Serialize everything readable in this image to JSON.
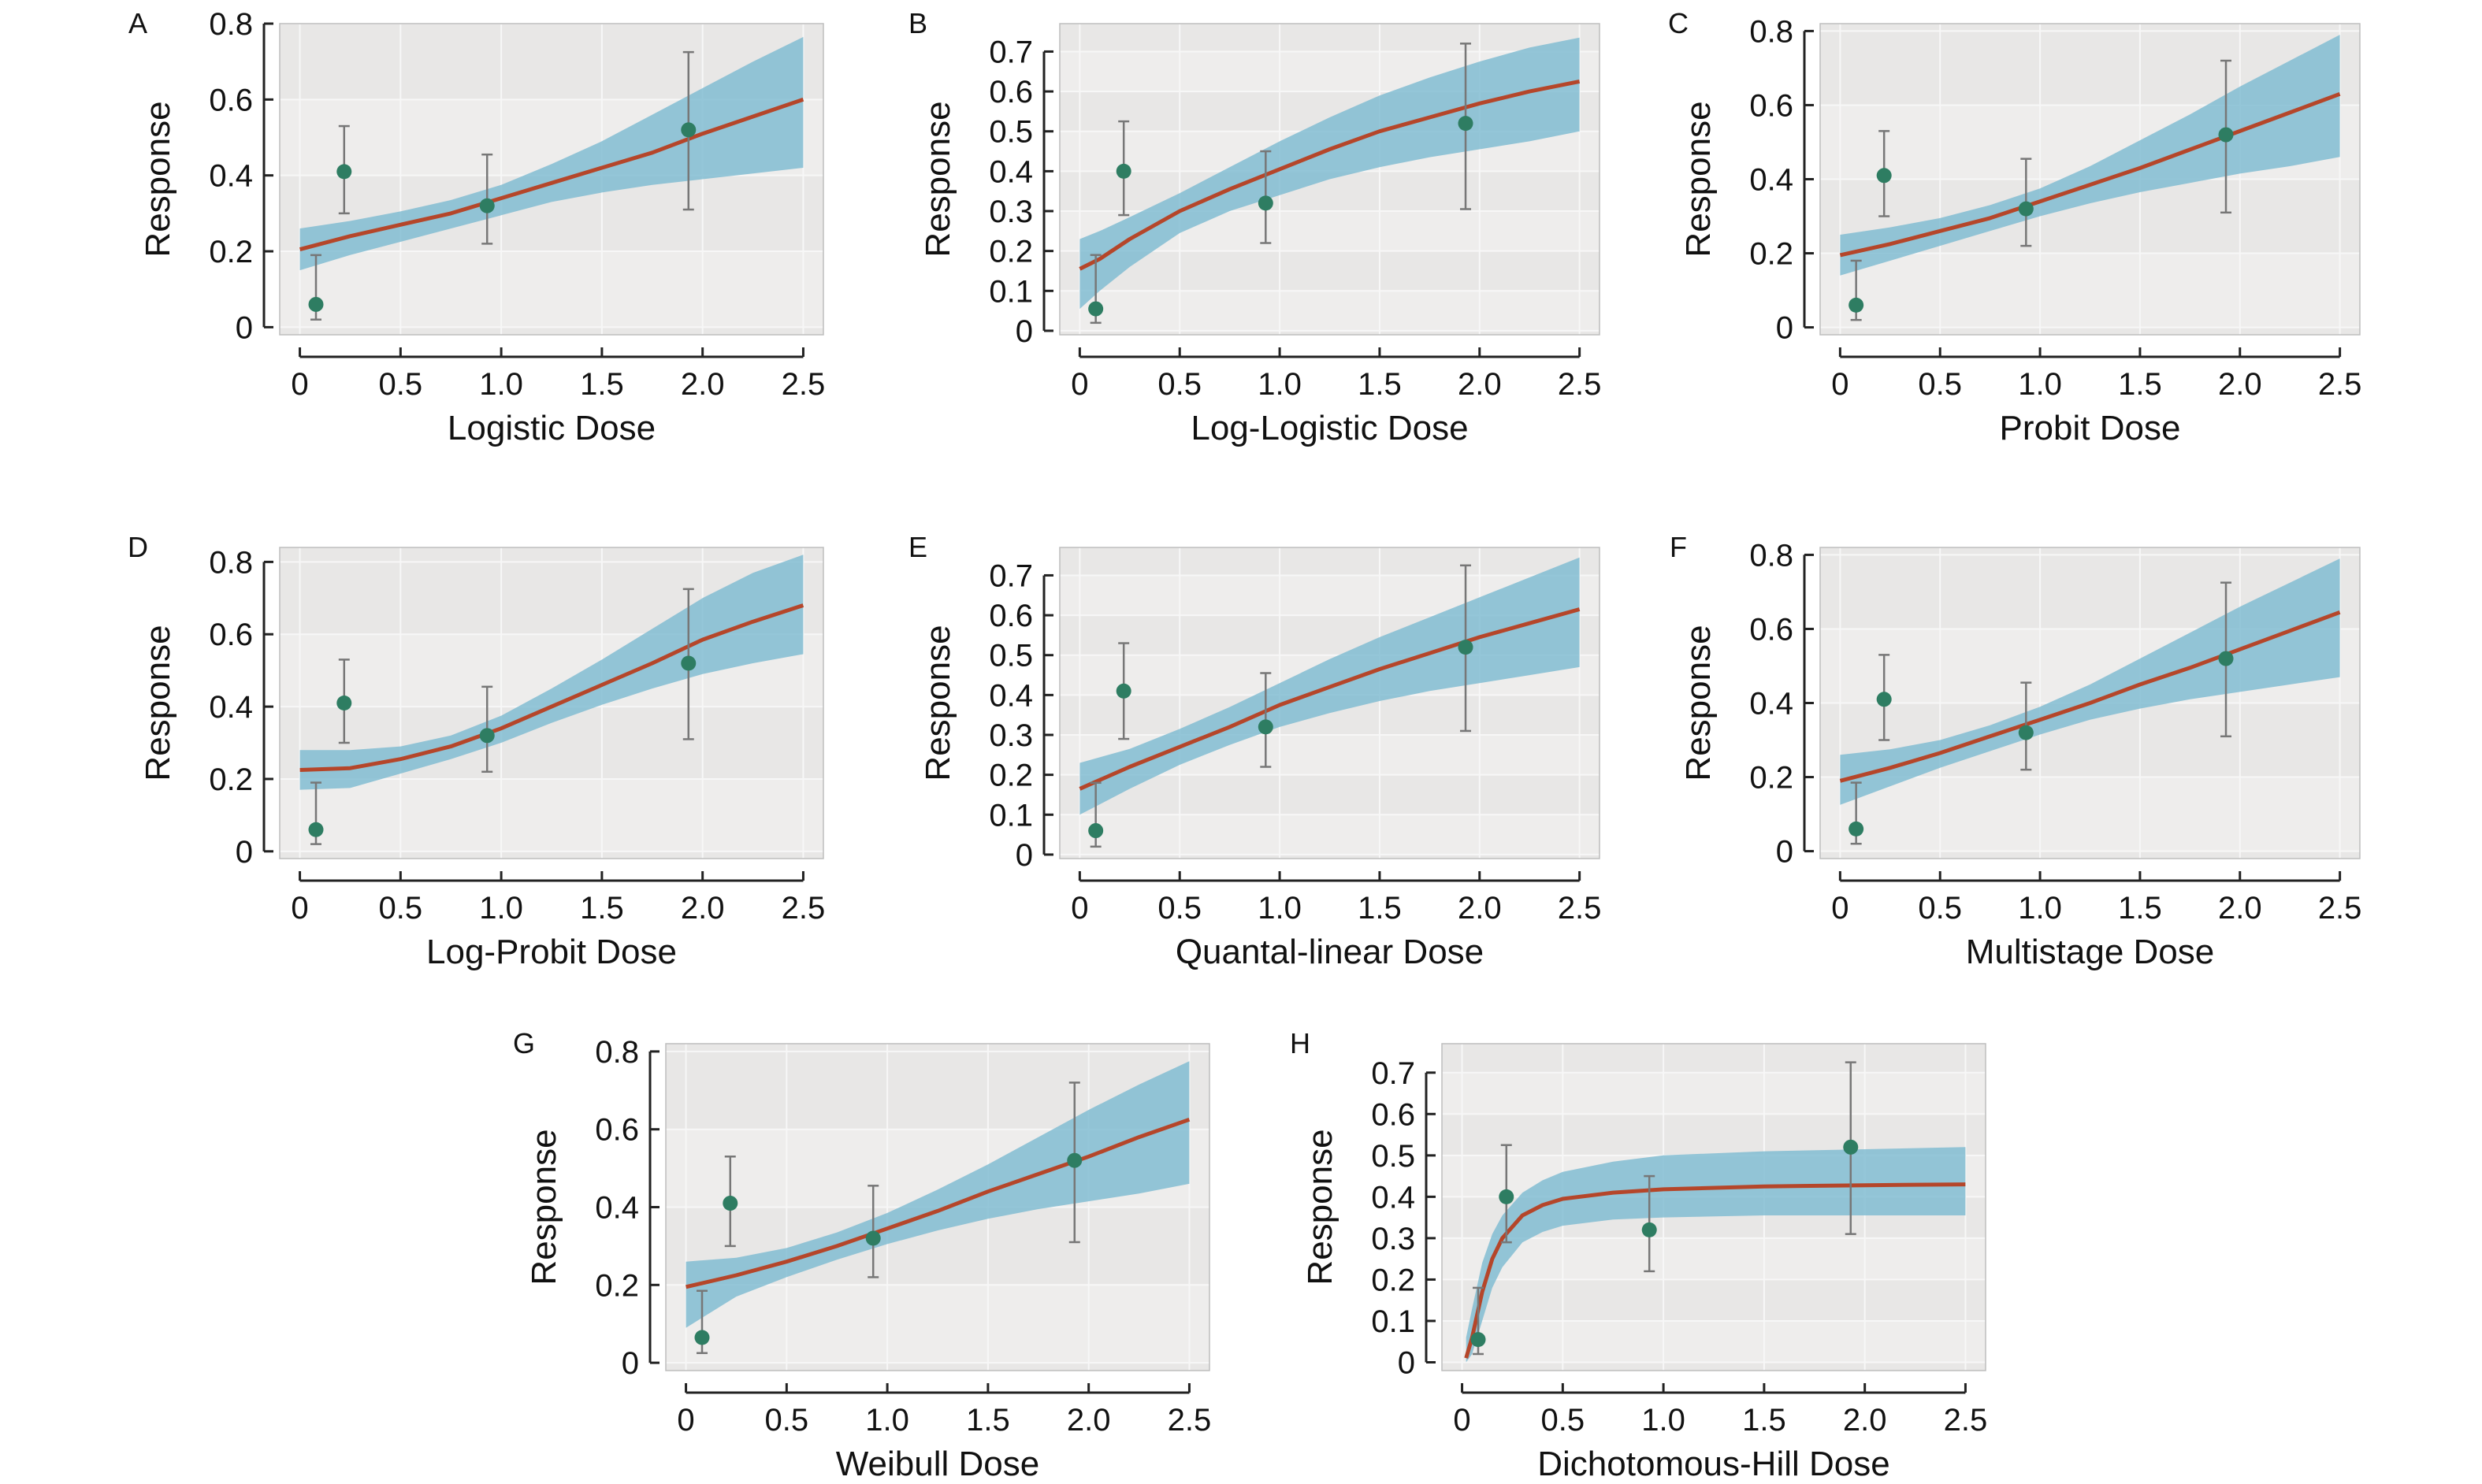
{
  "chart_data": [
    {
      "panel": "A",
      "type": "line",
      "xlabel": "Logistic Dose",
      "ylabel": "Response",
      "xlim": [
        -0.1,
        2.6
      ],
      "ylim": [
        -0.02,
        0.8
      ],
      "xticks": [
        "0",
        "0.5",
        "1.0",
        "1.5",
        "2.0",
        "2.5"
      ],
      "xtick_values": [
        0,
        0.5,
        1.0,
        1.5,
        2.0,
        2.5
      ],
      "yticks": [
        "0",
        "0.2",
        "0.4",
        "0.6",
        "0.8"
      ],
      "ytick_values": [
        0,
        0.2,
        0.4,
        0.6,
        0.8
      ],
      "curve": {
        "x": [
          0,
          0.25,
          0.5,
          0.75,
          1.0,
          1.25,
          1.5,
          1.75,
          2.0,
          2.25,
          2.5
        ],
        "y": [
          0.205,
          0.24,
          0.27,
          0.3,
          0.34,
          0.38,
          0.42,
          0.46,
          0.51,
          0.555,
          0.6
        ]
      },
      "band": {
        "x": [
          0,
          0.25,
          0.5,
          0.75,
          1.0,
          1.25,
          1.5,
          1.75,
          2.0,
          2.25,
          2.5
        ],
        "upper": [
          0.26,
          0.28,
          0.305,
          0.335,
          0.375,
          0.43,
          0.49,
          0.56,
          0.63,
          0.7,
          0.765
        ],
        "lower": [
          0.15,
          0.19,
          0.225,
          0.26,
          0.295,
          0.33,
          0.355,
          0.375,
          0.39,
          0.405,
          0.42
        ]
      },
      "points": [
        {
          "x": 0.08,
          "y": 0.06,
          "lo": 0.02,
          "hi": 0.19
        },
        {
          "x": 0.22,
          "y": 0.41,
          "lo": 0.3,
          "hi": 0.53
        },
        {
          "x": 0.93,
          "y": 0.32,
          "lo": 0.22,
          "hi": 0.455
        },
        {
          "x": 1.93,
          "y": 0.52,
          "lo": 0.31,
          "hi": 0.725
        }
      ]
    },
    {
      "panel": "B",
      "type": "line",
      "xlabel": "Log-Logistic Dose",
      "ylabel": "Response",
      "xlim": [
        -0.1,
        2.6
      ],
      "ylim": [
        -0.01,
        0.77
      ],
      "xticks": [
        "0",
        "0.5",
        "1.0",
        "1.5",
        "2.0",
        "2.5"
      ],
      "xtick_values": [
        0,
        0.5,
        1.0,
        1.5,
        2.0,
        2.5
      ],
      "yticks": [
        "0",
        "0.1",
        "0.2",
        "0.3",
        "0.4",
        "0.5",
        "0.6",
        "0.7"
      ],
      "ytick_values": [
        0,
        0.1,
        0.2,
        0.3,
        0.4,
        0.5,
        0.6,
        0.7
      ],
      "curve": {
        "x": [
          0,
          0.1,
          0.25,
          0.5,
          0.75,
          1.0,
          1.25,
          1.5,
          1.75,
          2.0,
          2.25,
          2.5
        ],
        "y": [
          0.155,
          0.18,
          0.23,
          0.3,
          0.355,
          0.405,
          0.455,
          0.5,
          0.535,
          0.57,
          0.6,
          0.625
        ]
      },
      "band": {
        "x": [
          0,
          0.1,
          0.25,
          0.5,
          0.75,
          1.0,
          1.25,
          1.5,
          1.75,
          2.0,
          2.25,
          2.5
        ],
        "upper": [
          0.23,
          0.25,
          0.285,
          0.345,
          0.41,
          0.475,
          0.535,
          0.59,
          0.635,
          0.675,
          0.71,
          0.735
        ],
        "lower": [
          0.055,
          0.1,
          0.16,
          0.245,
          0.3,
          0.34,
          0.38,
          0.41,
          0.435,
          0.455,
          0.475,
          0.5
        ]
      },
      "points": [
        {
          "x": 0.08,
          "y": 0.055,
          "lo": 0.02,
          "hi": 0.19
        },
        {
          "x": 0.22,
          "y": 0.4,
          "lo": 0.29,
          "hi": 0.525
        },
        {
          "x": 0.93,
          "y": 0.32,
          "lo": 0.22,
          "hi": 0.45
        },
        {
          "x": 1.93,
          "y": 0.52,
          "lo": 0.305,
          "hi": 0.72
        }
      ]
    },
    {
      "panel": "C",
      "type": "line",
      "xlabel": "Probit Dose",
      "ylabel": "Response",
      "xlim": [
        -0.1,
        2.6
      ],
      "ylim": [
        -0.02,
        0.82
      ],
      "xticks": [
        "0",
        "0.5",
        "1.0",
        "1.5",
        "2.0",
        "2.5"
      ],
      "xtick_values": [
        0,
        0.5,
        1.0,
        1.5,
        2.0,
        2.5
      ],
      "yticks": [
        "0",
        "0.2",
        "0.4",
        "0.6",
        "0.8"
      ],
      "ytick_values": [
        0,
        0.2,
        0.4,
        0.6,
        0.8
      ],
      "curve": {
        "x": [
          0,
          0.25,
          0.5,
          0.75,
          1.0,
          1.25,
          1.5,
          1.75,
          2.0,
          2.25,
          2.5
        ],
        "y": [
          0.195,
          0.225,
          0.26,
          0.295,
          0.34,
          0.385,
          0.43,
          0.48,
          0.53,
          0.58,
          0.63
        ]
      },
      "band": {
        "x": [
          0,
          0.25,
          0.5,
          0.75,
          1.0,
          1.25,
          1.5,
          1.75,
          2.0,
          2.25,
          2.5
        ],
        "upper": [
          0.25,
          0.27,
          0.295,
          0.33,
          0.375,
          0.435,
          0.505,
          0.575,
          0.65,
          0.72,
          0.79
        ],
        "lower": [
          0.14,
          0.18,
          0.22,
          0.26,
          0.3,
          0.335,
          0.365,
          0.39,
          0.415,
          0.435,
          0.46
        ]
      },
      "points": [
        {
          "x": 0.08,
          "y": 0.06,
          "lo": 0.02,
          "hi": 0.18
        },
        {
          "x": 0.22,
          "y": 0.41,
          "lo": 0.3,
          "hi": 0.53
        },
        {
          "x": 0.93,
          "y": 0.32,
          "lo": 0.22,
          "hi": 0.455
        },
        {
          "x": 1.93,
          "y": 0.52,
          "lo": 0.31,
          "hi": 0.72
        }
      ]
    },
    {
      "panel": "D",
      "type": "line",
      "xlabel": "Log-Probit Dose",
      "ylabel": "Response",
      "xlim": [
        -0.1,
        2.6
      ],
      "ylim": [
        -0.02,
        0.84
      ],
      "xticks": [
        "0",
        "0.5",
        "1.0",
        "1.5",
        "2.0",
        "2.5"
      ],
      "xtick_values": [
        0,
        0.5,
        1.0,
        1.5,
        2.0,
        2.5
      ],
      "yticks": [
        "0",
        "0.2",
        "0.4",
        "0.6",
        "0.8"
      ],
      "ytick_values": [
        0,
        0.2,
        0.4,
        0.6,
        0.8
      ],
      "curve": {
        "x": [
          0,
          0.25,
          0.5,
          0.75,
          1.0,
          1.25,
          1.5,
          1.75,
          2.0,
          2.25,
          2.5
        ],
        "y": [
          0.225,
          0.23,
          0.255,
          0.29,
          0.34,
          0.4,
          0.46,
          0.52,
          0.585,
          0.635,
          0.68
        ]
      },
      "band": {
        "x": [
          0,
          0.25,
          0.5,
          0.75,
          1.0,
          1.25,
          1.5,
          1.75,
          2.0,
          2.25,
          2.5
        ],
        "upper": [
          0.28,
          0.28,
          0.29,
          0.32,
          0.375,
          0.45,
          0.53,
          0.615,
          0.7,
          0.77,
          0.82
        ],
        "lower": [
          0.17,
          0.175,
          0.215,
          0.255,
          0.3,
          0.355,
          0.405,
          0.45,
          0.49,
          0.52,
          0.545
        ]
      },
      "points": [
        {
          "x": 0.08,
          "y": 0.06,
          "lo": 0.02,
          "hi": 0.19
        },
        {
          "x": 0.22,
          "y": 0.41,
          "lo": 0.3,
          "hi": 0.53
        },
        {
          "x": 0.93,
          "y": 0.32,
          "lo": 0.22,
          "hi": 0.455
        },
        {
          "x": 1.93,
          "y": 0.52,
          "lo": 0.31,
          "hi": 0.725
        }
      ]
    },
    {
      "panel": "E",
      "type": "line",
      "xlabel": "Quantal-linear Dose",
      "ylabel": "Response",
      "xlim": [
        -0.1,
        2.6
      ],
      "ylim": [
        -0.01,
        0.77
      ],
      "xticks": [
        "0",
        "0.5",
        "1.0",
        "1.5",
        "2.0",
        "2.5"
      ],
      "xtick_values": [
        0,
        0.5,
        1.0,
        1.5,
        2.0,
        2.5
      ],
      "yticks": [
        "0",
        "0.1",
        "0.2",
        "0.3",
        "0.4",
        "0.5",
        "0.6",
        "0.7"
      ],
      "ytick_values": [
        0,
        0.1,
        0.2,
        0.3,
        0.4,
        0.5,
        0.6,
        0.7
      ],
      "curve": {
        "x": [
          0,
          0.25,
          0.5,
          0.75,
          1.0,
          1.25,
          1.5,
          1.75,
          2.0,
          2.25,
          2.5
        ],
        "y": [
          0.165,
          0.22,
          0.27,
          0.32,
          0.375,
          0.42,
          0.465,
          0.505,
          0.545,
          0.58,
          0.615
        ]
      },
      "band": {
        "x": [
          0,
          0.25,
          0.5,
          0.75,
          1.0,
          1.25,
          1.5,
          1.75,
          2.0,
          2.25,
          2.5
        ],
        "upper": [
          0.23,
          0.265,
          0.315,
          0.37,
          0.43,
          0.49,
          0.545,
          0.595,
          0.645,
          0.695,
          0.745
        ],
        "lower": [
          0.1,
          0.165,
          0.225,
          0.275,
          0.32,
          0.355,
          0.385,
          0.41,
          0.43,
          0.45,
          0.47
        ]
      },
      "points": [
        {
          "x": 0.08,
          "y": 0.06,
          "lo": 0.02,
          "hi": 0.18
        },
        {
          "x": 0.22,
          "y": 0.41,
          "lo": 0.29,
          "hi": 0.53
        },
        {
          "x": 0.93,
          "y": 0.32,
          "lo": 0.22,
          "hi": 0.455
        },
        {
          "x": 1.93,
          "y": 0.52,
          "lo": 0.31,
          "hi": 0.725
        }
      ]
    },
    {
      "panel": "F",
      "type": "line",
      "xlabel": "Multistage Dose",
      "ylabel": "Response",
      "xlim": [
        -0.1,
        2.6
      ],
      "ylim": [
        -0.02,
        0.82
      ],
      "xticks": [
        "0",
        "0.5",
        "1.0",
        "1.5",
        "2.0",
        "2.5"
      ],
      "xtick_values": [
        0,
        0.5,
        1.0,
        1.5,
        2.0,
        2.5
      ],
      "yticks": [
        "0",
        "0.2",
        "0.4",
        "0.6",
        "0.8"
      ],
      "ytick_values": [
        0,
        0.2,
        0.4,
        0.6,
        0.8
      ],
      "curve": {
        "x": [
          0,
          0.25,
          0.5,
          0.75,
          1.0,
          1.25,
          1.5,
          1.75,
          2.0,
          2.25,
          2.5
        ],
        "y": [
          0.19,
          0.225,
          0.265,
          0.31,
          0.355,
          0.4,
          0.45,
          0.495,
          0.545,
          0.595,
          0.645
        ]
      },
      "band": {
        "x": [
          0,
          0.25,
          0.5,
          0.75,
          1.0,
          1.25,
          1.5,
          1.75,
          2.0,
          2.25,
          2.5
        ],
        "upper": [
          0.26,
          0.275,
          0.3,
          0.34,
          0.39,
          0.45,
          0.52,
          0.59,
          0.66,
          0.725,
          0.79
        ],
        "lower": [
          0.125,
          0.175,
          0.225,
          0.27,
          0.315,
          0.355,
          0.385,
          0.41,
          0.43,
          0.45,
          0.47
        ]
      },
      "points": [
        {
          "x": 0.08,
          "y": 0.06,
          "lo": 0.02,
          "hi": 0.185
        },
        {
          "x": 0.22,
          "y": 0.41,
          "lo": 0.3,
          "hi": 0.53
        },
        {
          "x": 0.93,
          "y": 0.32,
          "lo": 0.22,
          "hi": 0.455
        },
        {
          "x": 1.93,
          "y": 0.52,
          "lo": 0.31,
          "hi": 0.725
        }
      ]
    },
    {
      "panel": "G",
      "type": "line",
      "xlabel": "Weibull Dose",
      "ylabel": "Response",
      "xlim": [
        -0.1,
        2.6
      ],
      "ylim": [
        -0.02,
        0.82
      ],
      "xticks": [
        "0",
        "0.5",
        "1.0",
        "1.5",
        "2.0",
        "2.5"
      ],
      "xtick_values": [
        0,
        0.5,
        1.0,
        1.5,
        2.0,
        2.5
      ],
      "yticks": [
        "0",
        "0.2",
        "0.4",
        "0.6",
        "0.8"
      ],
      "ytick_values": [
        0,
        0.2,
        0.4,
        0.6,
        0.8
      ],
      "curve": {
        "x": [
          0,
          0.25,
          0.5,
          0.75,
          1.0,
          1.25,
          1.5,
          1.75,
          2.0,
          2.25,
          2.5
        ],
        "y": [
          0.195,
          0.225,
          0.26,
          0.3,
          0.345,
          0.39,
          0.44,
          0.485,
          0.53,
          0.58,
          0.625
        ]
      },
      "band": {
        "x": [
          0,
          0.25,
          0.5,
          0.75,
          1.0,
          1.25,
          1.5,
          1.75,
          2.0,
          2.25,
          2.5
        ],
        "upper": [
          0.26,
          0.27,
          0.295,
          0.335,
          0.385,
          0.445,
          0.51,
          0.58,
          0.65,
          0.715,
          0.775
        ],
        "lower": [
          0.09,
          0.17,
          0.22,
          0.265,
          0.305,
          0.34,
          0.37,
          0.395,
          0.415,
          0.435,
          0.46
        ]
      },
      "points": [
        {
          "x": 0.08,
          "y": 0.065,
          "lo": 0.025,
          "hi": 0.185
        },
        {
          "x": 0.22,
          "y": 0.41,
          "lo": 0.3,
          "hi": 0.53
        },
        {
          "x": 0.93,
          "y": 0.32,
          "lo": 0.22,
          "hi": 0.455
        },
        {
          "x": 1.93,
          "y": 0.52,
          "lo": 0.31,
          "hi": 0.72
        }
      ]
    },
    {
      "panel": "H",
      "type": "line",
      "xlabel": "Dichotomous-Hill Dose",
      "ylabel": "Response",
      "xlim": [
        -0.1,
        2.6
      ],
      "ylim": [
        -0.02,
        0.77
      ],
      "xticks": [
        "0",
        "0.5",
        "1.0",
        "1.5",
        "2.0",
        "2.5"
      ],
      "xtick_values": [
        0,
        0.5,
        1.0,
        1.5,
        2.0,
        2.5
      ],
      "yticks": [
        "0",
        "0.1",
        "0.2",
        "0.3",
        "0.4",
        "0.5",
        "0.6",
        "0.7"
      ],
      "ytick_values": [
        0,
        0.1,
        0.2,
        0.3,
        0.4,
        0.5,
        0.6,
        0.7
      ],
      "curve": {
        "x": [
          0.02,
          0.05,
          0.1,
          0.15,
          0.2,
          0.3,
          0.4,
          0.5,
          0.75,
          1.0,
          1.5,
          2.0,
          2.5
        ],
        "y": [
          0.01,
          0.06,
          0.17,
          0.25,
          0.3,
          0.355,
          0.38,
          0.395,
          0.41,
          0.418,
          0.425,
          0.428,
          0.43
        ]
      },
      "band": {
        "x": [
          0.02,
          0.05,
          0.1,
          0.15,
          0.2,
          0.3,
          0.4,
          0.5,
          0.75,
          1.0,
          1.5,
          2.0,
          2.5
        ],
        "upper": [
          0.06,
          0.13,
          0.24,
          0.31,
          0.355,
          0.41,
          0.44,
          0.46,
          0.485,
          0.5,
          0.51,
          0.515,
          0.52
        ],
        "lower": [
          0.0,
          0.02,
          0.1,
          0.18,
          0.23,
          0.29,
          0.315,
          0.33,
          0.345,
          0.35,
          0.355,
          0.355,
          0.355
        ]
      },
      "points": [
        {
          "x": 0.08,
          "y": 0.055,
          "lo": 0.02,
          "hi": 0.18
        },
        {
          "x": 0.22,
          "y": 0.4,
          "lo": 0.29,
          "hi": 0.525
        },
        {
          "x": 0.93,
          "y": 0.32,
          "lo": 0.22,
          "hi": 0.45
        },
        {
          "x": 1.93,
          "y": 0.52,
          "lo": 0.31,
          "hi": 0.725
        }
      ]
    }
  ],
  "colors": {
    "plot_background": "#e8e7e6",
    "grid_band": "#eeedec",
    "gridline": "#f7f7f7",
    "band_fill": "#79b9cf",
    "curve": "#b5462a",
    "point": "#2e7d62",
    "errorbar": "#777777",
    "axis": "#222222"
  }
}
